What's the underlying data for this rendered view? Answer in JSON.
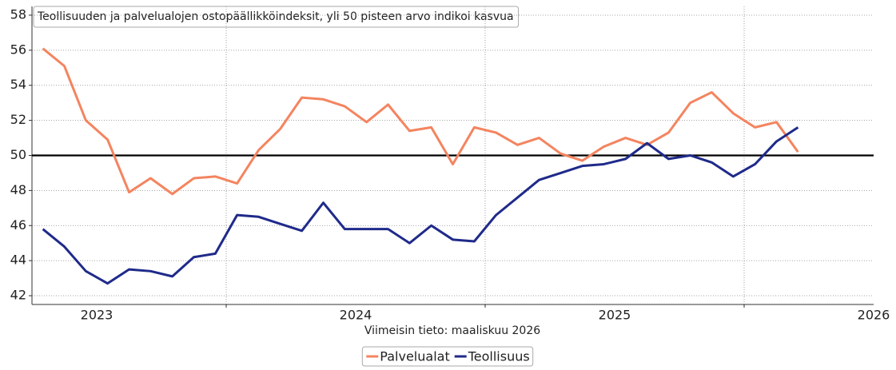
{
  "chart_data": {
    "type": "line",
    "title": "Teollisuuden ja palvelualojen ostopäällikköindeksit, yli 50 pisteen arvo indikoi kasvua",
    "note": "Viimeisin tieto: maaliskuu 2026",
    "x": [
      2022.792,
      2022.875,
      2022.958,
      2023.042,
      2023.125,
      2023.208,
      2023.292,
      2023.375,
      2023.458,
      2023.542,
      2023.625,
      2023.708,
      2023.792,
      2023.875,
      2023.958,
      2024.042,
      2024.125,
      2024.208,
      2024.292,
      2024.375,
      2024.458,
      2024.542,
      2024.625,
      2024.708,
      2024.792,
      2024.875,
      2024.958,
      2025.042,
      2025.125,
      2025.208,
      2025.292,
      2025.375,
      2025.458,
      2025.542,
      2025.625,
      2025.708
    ],
    "series": [
      {
        "name": "Palvelualat",
        "color": "#f4845f",
        "values": [
          56.1,
          55.1,
          52.0,
          50.9,
          47.9,
          48.7,
          47.8,
          48.7,
          48.8,
          48.4,
          50.3,
          51.5,
          53.3,
          53.2,
          52.8,
          51.9,
          52.9,
          51.4,
          51.6,
          49.5,
          51.6,
          51.3,
          50.6,
          51.0,
          50.1,
          49.7,
          50.5,
          51.0,
          50.6,
          51.3,
          53.0,
          53.6,
          52.4,
          51.6,
          51.9,
          50.2
        ]
      },
      {
        "name": "Teollisuus",
        "color": "#1f2a8a",
        "values": [
          45.8,
          44.8,
          43.4,
          42.7,
          43.5,
          43.4,
          43.1,
          44.2,
          44.4,
          46.6,
          46.5,
          46.1,
          45.7,
          47.3,
          45.8,
          45.8,
          45.8,
          45.0,
          46.0,
          45.2,
          45.1,
          46.6,
          47.6,
          48.6,
          49.0,
          49.4,
          49.5,
          49.8,
          50.7,
          49.8,
          50.0,
          49.6,
          48.8,
          49.5,
          50.8,
          51.6
        ]
      }
    ],
    "xlim": [
      2022.75,
      2026
    ],
    "xticks": [
      2023,
      2024,
      2025,
      2026
    ],
    "xgrid": [
      2023.5,
      2024.5,
      2025.5
    ],
    "ylim": [
      41.5,
      58.5
    ],
    "yticks": [
      42,
      44,
      46,
      48,
      50,
      52,
      54,
      56,
      58
    ],
    "hline": 50,
    "grid": true,
    "legend": "bottom"
  }
}
